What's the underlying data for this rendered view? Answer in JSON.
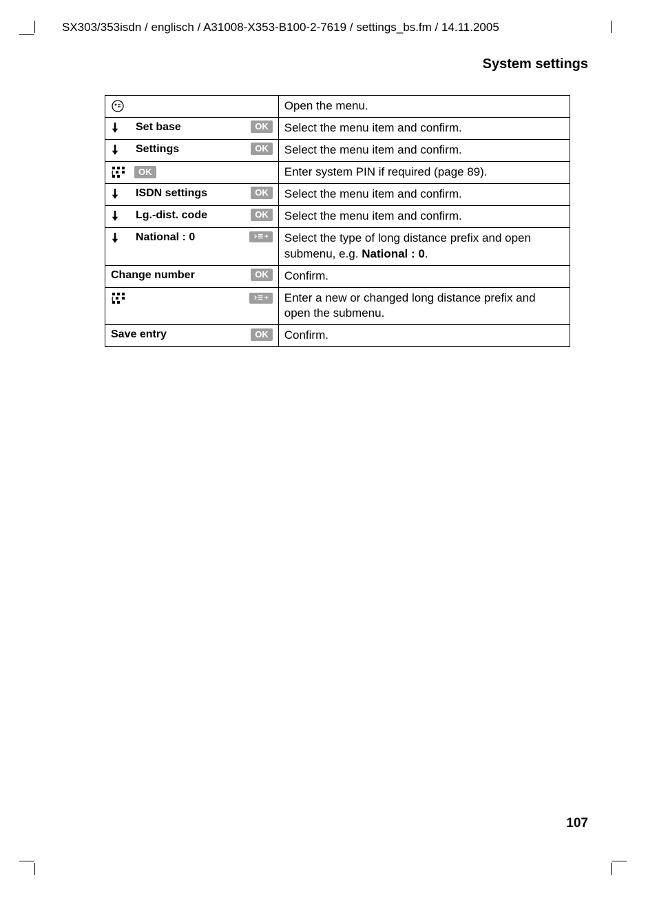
{
  "header_path": "SX303/353isdn / englisch / A31008-X353-B100-2-7619 / settings_bs.fm / 14.11.2005",
  "section_title": "System settings",
  "page_number": "107",
  "btn_ok": "OK",
  "rows": [
    {
      "icon": "menu-circle",
      "label": "",
      "btn": "",
      "desc_pre": "Open the menu.",
      "desc_bold": "",
      "desc_post": ""
    },
    {
      "icon": "down-arrow",
      "label": "Set base",
      "btn": "OK",
      "desc_pre": "Select the menu item and confirm.",
      "desc_bold": "",
      "desc_post": ""
    },
    {
      "icon": "down-arrow",
      "label": "Settings",
      "btn": "OK",
      "desc_pre": "Select the menu item and confirm.",
      "desc_bold": "",
      "desc_post": ""
    },
    {
      "icon": "keypad",
      "label": "",
      "btn": "OK",
      "btn_inline": true,
      "desc_pre": "Enter system PIN if required (page 89).",
      "desc_bold": "",
      "desc_post": ""
    },
    {
      "icon": "down-arrow",
      "label": "ISDN settings",
      "btn": "OK",
      "desc_pre": "Select the menu item and confirm.",
      "desc_bold": "",
      "desc_post": ""
    },
    {
      "icon": "down-arrow",
      "label": "Lg.-dist. code",
      "btn": "OK",
      "desc_pre": "Select the menu item and confirm.",
      "desc_bold": "",
      "desc_post": ""
    },
    {
      "icon": "down-arrow",
      "label": "National : 0",
      "btn": "menu",
      "desc_pre": "Select the type of long distance prefix and open submenu, e.g. ",
      "desc_bold": "National : 0",
      "desc_post": "."
    },
    {
      "icon": "",
      "label": "Change number",
      "btn": "OK",
      "no_indent": true,
      "desc_pre": "Confirm.",
      "desc_bold": "",
      "desc_post": ""
    },
    {
      "icon": "keypad",
      "label": "",
      "btn": "menu",
      "desc_pre": "Enter a new or changed long distance prefix and open the submenu.",
      "desc_bold": "",
      "desc_post": ""
    },
    {
      "icon": "",
      "label": "Save entry",
      "btn": "OK",
      "no_indent": true,
      "desc_pre": "Confirm.",
      "desc_bold": "",
      "desc_post": ""
    }
  ]
}
